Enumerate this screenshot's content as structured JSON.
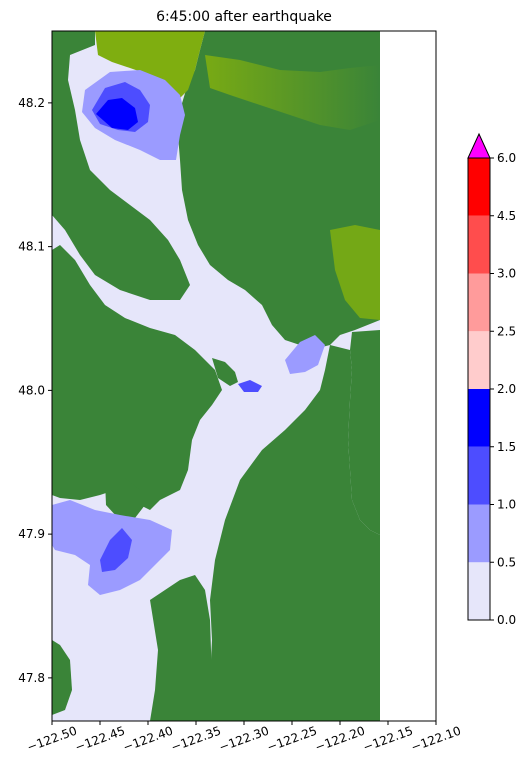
{
  "chart_data": [
    {
      "type": "heatmap",
      "title": "6:45:00 after earthquake",
      "xlabel": "",
      "ylabel": "",
      "xlim": [
        -122.5,
        -122.1
      ],
      "ylim": [
        47.77,
        48.25
      ],
      "x_ticks": [
        "−122.50",
        "−122.45",
        "−122.40",
        "−122.35",
        "−122.30",
        "−122.25",
        "−122.20",
        "−122.15",
        "−122.10"
      ],
      "x_tick_values": [
        -122.5,
        -122.45,
        -122.4,
        -122.35,
        -122.3,
        -122.25,
        -122.2,
        -122.15,
        -122.1
      ],
      "y_ticks": [
        "48.2",
        "48.1",
        "48.0",
        "47.9",
        "47.8"
      ],
      "y_tick_values": [
        48.2,
        48.1,
        48.0,
        47.9,
        47.8
      ],
      "grid": false,
      "colors": {
        "water": "#e6e6fa",
        "land_dark": "#3a8438",
        "land_light": "#7fae10",
        "level_0_5": "#9b9bff",
        "level_1_0": "#4d4dff",
        "level_1_5": "#0000ff",
        "level_2_0": "#0000d0"
      }
    },
    {
      "type": "colorbar",
      "levels": [
        0.0,
        0.5,
        1.0,
        1.5,
        2.0,
        2.5,
        3.0,
        4.5,
        6.0
      ],
      "tick_labels": [
        "0.0",
        "0.5",
        "1.0",
        "1.5",
        "2.0",
        "2.5",
        "3.0",
        "4.5",
        "6.0"
      ],
      "colors": [
        "#e6e6fa",
        "#9b9bff",
        "#4d4dff",
        "#0000ff",
        "#ffcccc",
        "#ff9b9b",
        "#ff4d4d",
        "#ff0000"
      ],
      "extend_color": "#ff00ff",
      "extend": "max"
    }
  ]
}
